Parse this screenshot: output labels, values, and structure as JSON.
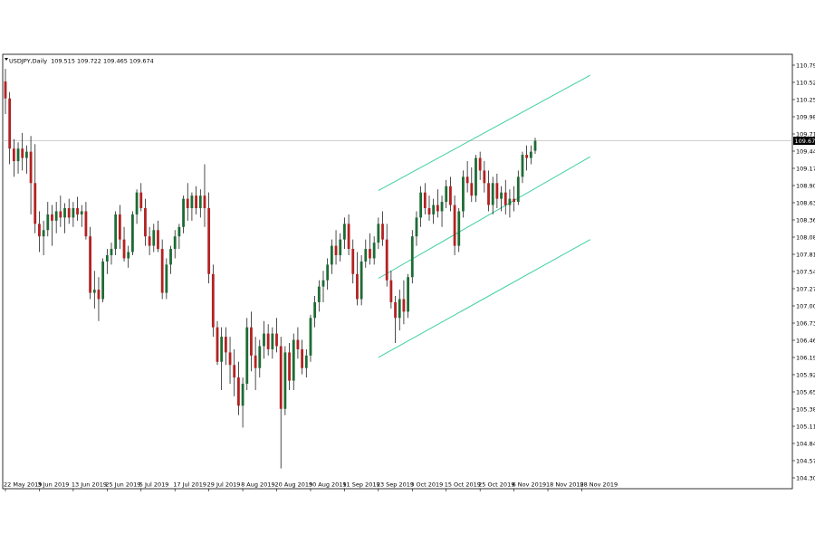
{
  "chart_data": {
    "type": "candlestick",
    "title": "USDJPY,Daily",
    "ohlc_text": "109.515 109.722 109.465 109.674",
    "last_price_label": "109.674",
    "last_price": 109.674,
    "ylim": [
      104.3,
      110.88
    ],
    "y_ticks": [
      "110.795",
      "110.525",
      "110.255",
      "109.980",
      "109.710",
      "109.440",
      "109.170",
      "108.900",
      "108.630",
      "108.360",
      "108.085",
      "107.815",
      "107.545",
      "107.275",
      "107.005",
      "106.735",
      "106.465",
      "106.190",
      "105.920",
      "105.650",
      "105.380",
      "105.110",
      "104.840",
      "104.570",
      "104.300"
    ],
    "x_labels": [
      "22 May 2019",
      "3 Jun 2019",
      "13 Jun 2019",
      "25 Jun 2019",
      "5 Jul 2019",
      "17 Jul 2019",
      "29 Jul 2019",
      "8 Aug 2019",
      "20 Aug 2019",
      "30 Aug 2019",
      "11 Sep 2019",
      "23 Sep 2019",
      "3 Oct 2019",
      "15 Oct 2019",
      "25 Oct 2019",
      "6 Nov 2019",
      "18 Nov 2019",
      "28 Nov 2019"
    ],
    "x_label_bars": [
      0,
      8,
      16,
      24,
      32,
      40,
      48,
      56,
      64,
      72,
      80,
      88,
      96,
      104,
      112,
      120,
      128,
      136
    ],
    "grid": false,
    "colors": {
      "up": "#1e6b35",
      "down": "#b22222",
      "wick": "#000000",
      "channel": "#3ecfa3",
      "price_line": "#c8c8c8",
      "background": "#ffffff"
    },
    "channel": {
      "upper": {
        "start_bar": 88,
        "start": 108.88,
        "end_bar": 138,
        "end": 110.72
      },
      "middle": {
        "start_bar": 88,
        "start": 107.48,
        "end_bar": 138,
        "end": 109.42
      },
      "lower": {
        "start_bar": 88,
        "start": 106.22,
        "end_bar": 138,
        "end": 108.1
      }
    },
    "candles": [
      {
        "o": 110.62,
        "h": 110.82,
        "l": 110.1,
        "c": 110.35
      },
      {
        "o": 110.35,
        "h": 110.45,
        "l": 109.3,
        "c": 109.55
      },
      {
        "o": 109.55,
        "h": 109.7,
        "l": 109.1,
        "c": 109.35
      },
      {
        "o": 109.35,
        "h": 109.65,
        "l": 109.15,
        "c": 109.55
      },
      {
        "o": 109.55,
        "h": 109.8,
        "l": 109.2,
        "c": 109.4
      },
      {
        "o": 109.4,
        "h": 109.6,
        "l": 109.15,
        "c": 109.5
      },
      {
        "o": 109.5,
        "h": 109.75,
        "l": 108.5,
        "c": 109.0
      },
      {
        "o": 109.0,
        "h": 109.62,
        "l": 108.2,
        "c": 108.35
      },
      {
        "o": 108.35,
        "h": 108.55,
        "l": 107.9,
        "c": 108.15
      },
      {
        "o": 108.15,
        "h": 108.4,
        "l": 107.85,
        "c": 108.25
      },
      {
        "o": 108.25,
        "h": 108.7,
        "l": 108.15,
        "c": 108.5
      },
      {
        "o": 108.5,
        "h": 108.65,
        "l": 108.0,
        "c": 108.4
      },
      {
        "o": 108.4,
        "h": 108.7,
        "l": 108.2,
        "c": 108.55
      },
      {
        "o": 108.55,
        "h": 108.8,
        "l": 108.3,
        "c": 108.45
      },
      {
        "o": 108.45,
        "h": 108.68,
        "l": 108.2,
        "c": 108.6
      },
      {
        "o": 108.6,
        "h": 108.75,
        "l": 108.35,
        "c": 108.45
      },
      {
        "o": 108.45,
        "h": 108.7,
        "l": 108.3,
        "c": 108.6
      },
      {
        "o": 108.6,
        "h": 108.78,
        "l": 108.4,
        "c": 108.5
      },
      {
        "o": 108.5,
        "h": 108.65,
        "l": 108.3,
        "c": 108.55
      },
      {
        "o": 108.55,
        "h": 108.7,
        "l": 108.1,
        "c": 108.15
      },
      {
        "o": 108.15,
        "h": 108.3,
        "l": 107.15,
        "c": 107.25
      },
      {
        "o": 107.25,
        "h": 107.6,
        "l": 107.0,
        "c": 107.3
      },
      {
        "o": 107.3,
        "h": 107.5,
        "l": 106.8,
        "c": 107.15
      },
      {
        "o": 107.15,
        "h": 107.8,
        "l": 107.1,
        "c": 107.75
      },
      {
        "o": 107.75,
        "h": 107.95,
        "l": 107.55,
        "c": 107.85
      },
      {
        "o": 107.85,
        "h": 108.05,
        "l": 107.7,
        "c": 107.95
      },
      {
        "o": 107.95,
        "h": 108.55,
        "l": 107.85,
        "c": 108.5
      },
      {
        "o": 108.5,
        "h": 108.65,
        "l": 107.95,
        "c": 108.1
      },
      {
        "o": 108.1,
        "h": 108.3,
        "l": 107.75,
        "c": 107.8
      },
      {
        "o": 107.8,
        "h": 108.0,
        "l": 107.65,
        "c": 107.9
      },
      {
        "o": 107.9,
        "h": 108.55,
        "l": 107.85,
        "c": 108.5
      },
      {
        "o": 108.5,
        "h": 108.9,
        "l": 108.35,
        "c": 108.85
      },
      {
        "o": 108.85,
        "h": 109.0,
        "l": 108.55,
        "c": 108.6
      },
      {
        "o": 108.6,
        "h": 108.75,
        "l": 108.0,
        "c": 108.15
      },
      {
        "o": 108.15,
        "h": 108.3,
        "l": 107.85,
        "c": 108.0
      },
      {
        "o": 108.0,
        "h": 108.35,
        "l": 107.9,
        "c": 108.25
      },
      {
        "o": 108.25,
        "h": 108.4,
        "l": 107.9,
        "c": 107.95
      },
      {
        "o": 107.95,
        "h": 108.1,
        "l": 107.15,
        "c": 107.25
      },
      {
        "o": 107.25,
        "h": 107.8,
        "l": 107.15,
        "c": 107.7
      },
      {
        "o": 107.7,
        "h": 108.0,
        "l": 107.55,
        "c": 107.95
      },
      {
        "o": 107.95,
        "h": 108.25,
        "l": 107.8,
        "c": 108.15
      },
      {
        "o": 108.15,
        "h": 108.35,
        "l": 107.95,
        "c": 108.3
      },
      {
        "o": 108.3,
        "h": 108.8,
        "l": 108.2,
        "c": 108.75
      },
      {
        "o": 108.75,
        "h": 109.0,
        "l": 108.4,
        "c": 108.6
      },
      {
        "o": 108.6,
        "h": 108.85,
        "l": 108.4,
        "c": 108.8
      },
      {
        "o": 108.8,
        "h": 108.95,
        "l": 108.5,
        "c": 108.6
      },
      {
        "o": 108.6,
        "h": 108.9,
        "l": 108.45,
        "c": 108.8
      },
      {
        "o": 108.8,
        "h": 109.3,
        "l": 108.3,
        "c": 108.6
      },
      {
        "o": 108.6,
        "h": 108.85,
        "l": 107.4,
        "c": 107.55
      },
      {
        "o": 107.55,
        "h": 107.7,
        "l": 106.55,
        "c": 106.7
      },
      {
        "o": 106.7,
        "h": 106.8,
        "l": 106.1,
        "c": 106.15
      },
      {
        "o": 106.15,
        "h": 106.7,
        "l": 105.7,
        "c": 106.55
      },
      {
        "o": 106.55,
        "h": 106.7,
        "l": 106.1,
        "c": 106.3
      },
      {
        "o": 106.3,
        "h": 106.55,
        "l": 105.8,
        "c": 106.1
      },
      {
        "o": 106.1,
        "h": 106.35,
        "l": 105.6,
        "c": 105.9
      },
      {
        "o": 105.9,
        "h": 106.15,
        "l": 105.3,
        "c": 105.45
      },
      {
        "o": 105.45,
        "h": 105.9,
        "l": 105.1,
        "c": 105.8
      },
      {
        "o": 105.8,
        "h": 106.85,
        "l": 105.7,
        "c": 106.7
      },
      {
        "o": 106.7,
        "h": 106.95,
        "l": 106.0,
        "c": 106.25
      },
      {
        "o": 106.25,
        "h": 106.55,
        "l": 105.7,
        "c": 106.05
      },
      {
        "o": 106.05,
        "h": 106.5,
        "l": 105.9,
        "c": 106.4
      },
      {
        "o": 106.4,
        "h": 106.8,
        "l": 106.2,
        "c": 106.6
      },
      {
        "o": 106.6,
        "h": 106.75,
        "l": 106.25,
        "c": 106.35
      },
      {
        "o": 106.35,
        "h": 106.7,
        "l": 106.2,
        "c": 106.6
      },
      {
        "o": 106.6,
        "h": 106.85,
        "l": 106.3,
        "c": 106.4
      },
      {
        "o": 106.4,
        "h": 106.55,
        "l": 104.45,
        "c": 105.4
      },
      {
        "o": 105.4,
        "h": 106.4,
        "l": 105.3,
        "c": 106.3
      },
      {
        "o": 106.3,
        "h": 106.45,
        "l": 105.7,
        "c": 105.85
      },
      {
        "o": 105.85,
        "h": 106.6,
        "l": 105.7,
        "c": 106.5
      },
      {
        "o": 106.5,
        "h": 106.7,
        "l": 106.2,
        "c": 106.35
      },
      {
        "o": 106.35,
        "h": 106.5,
        "l": 105.95,
        "c": 106.05
      },
      {
        "o": 106.05,
        "h": 106.35,
        "l": 105.9,
        "c": 106.25
      },
      {
        "o": 106.25,
        "h": 106.9,
        "l": 106.15,
        "c": 106.85
      },
      {
        "o": 106.85,
        "h": 107.2,
        "l": 106.7,
        "c": 107.1
      },
      {
        "o": 107.1,
        "h": 107.45,
        "l": 106.95,
        "c": 107.35
      },
      {
        "o": 107.35,
        "h": 107.6,
        "l": 107.1,
        "c": 107.45
      },
      {
        "o": 107.45,
        "h": 107.8,
        "l": 107.3,
        "c": 107.7
      },
      {
        "o": 107.7,
        "h": 108.1,
        "l": 107.55,
        "c": 108.0
      },
      {
        "o": 108.0,
        "h": 108.25,
        "l": 107.7,
        "c": 107.85
      },
      {
        "o": 107.85,
        "h": 108.2,
        "l": 107.75,
        "c": 108.1
      },
      {
        "o": 108.1,
        "h": 108.45,
        "l": 107.95,
        "c": 108.35
      },
      {
        "o": 108.35,
        "h": 108.5,
        "l": 107.85,
        "c": 107.95
      },
      {
        "o": 107.95,
        "h": 108.1,
        "l": 107.4,
        "c": 107.55
      },
      {
        "o": 107.55,
        "h": 107.9,
        "l": 107.05,
        "c": 107.15
      },
      {
        "o": 107.15,
        "h": 107.85,
        "l": 107.05,
        "c": 107.75
      },
      {
        "o": 107.75,
        "h": 108.1,
        "l": 107.65,
        "c": 107.95
      },
      {
        "o": 107.95,
        "h": 108.2,
        "l": 107.7,
        "c": 107.8
      },
      {
        "o": 107.8,
        "h": 108.15,
        "l": 107.7,
        "c": 108.05
      },
      {
        "o": 108.05,
        "h": 108.45,
        "l": 107.95,
        "c": 108.35
      },
      {
        "o": 108.35,
        "h": 108.55,
        "l": 108.0,
        "c": 108.1
      },
      {
        "o": 108.1,
        "h": 108.35,
        "l": 107.35,
        "c": 107.45
      },
      {
        "o": 107.45,
        "h": 107.6,
        "l": 107.0,
        "c": 107.1
      },
      {
        "o": 107.1,
        "h": 107.2,
        "l": 106.45,
        "c": 106.85
      },
      {
        "o": 106.85,
        "h": 107.3,
        "l": 106.65,
        "c": 107.15
      },
      {
        "o": 107.15,
        "h": 107.45,
        "l": 106.75,
        "c": 106.95
      },
      {
        "o": 106.95,
        "h": 107.55,
        "l": 106.85,
        "c": 107.5
      },
      {
        "o": 107.5,
        "h": 108.25,
        "l": 107.4,
        "c": 108.15
      },
      {
        "o": 108.15,
        "h": 108.55,
        "l": 108.0,
        "c": 108.45
      },
      {
        "o": 108.45,
        "h": 108.95,
        "l": 108.3,
        "c": 108.85
      },
      {
        "o": 108.85,
        "h": 109.0,
        "l": 108.5,
        "c": 108.6
      },
      {
        "o": 108.6,
        "h": 108.8,
        "l": 108.4,
        "c": 108.5
      },
      {
        "o": 108.5,
        "h": 108.75,
        "l": 108.35,
        "c": 108.65
      },
      {
        "o": 108.65,
        "h": 108.9,
        "l": 108.45,
        "c": 108.55
      },
      {
        "o": 108.55,
        "h": 108.8,
        "l": 108.3,
        "c": 108.7
      },
      {
        "o": 108.7,
        "h": 109.05,
        "l": 108.6,
        "c": 108.95
      },
      {
        "o": 108.95,
        "h": 109.1,
        "l": 108.55,
        "c": 108.65
      },
      {
        "o": 108.65,
        "h": 108.8,
        "l": 107.85,
        "c": 108.0
      },
      {
        "o": 108.0,
        "h": 108.6,
        "l": 107.9,
        "c": 108.55
      },
      {
        "o": 108.55,
        "h": 109.2,
        "l": 108.45,
        "c": 109.1
      },
      {
        "o": 109.1,
        "h": 109.35,
        "l": 108.85,
        "c": 109.0
      },
      {
        "o": 109.0,
        "h": 109.25,
        "l": 108.7,
        "c": 108.8
      },
      {
        "o": 108.8,
        "h": 109.45,
        "l": 108.7,
        "c": 109.4
      },
      {
        "o": 109.4,
        "h": 109.5,
        "l": 109.05,
        "c": 109.2
      },
      {
        "o": 109.2,
        "h": 109.35,
        "l": 108.85,
        "c": 109.0
      },
      {
        "o": 109.0,
        "h": 109.2,
        "l": 108.55,
        "c": 108.65
      },
      {
        "o": 108.65,
        "h": 109.1,
        "l": 108.5,
        "c": 109.0
      },
      {
        "o": 109.0,
        "h": 109.15,
        "l": 108.6,
        "c": 108.75
      },
      {
        "o": 108.75,
        "h": 108.95,
        "l": 108.55,
        "c": 108.85
      },
      {
        "o": 108.85,
        "h": 109.05,
        "l": 108.5,
        "c": 108.65
      },
      {
        "o": 108.65,
        "h": 108.9,
        "l": 108.45,
        "c": 108.75
      },
      {
        "o": 108.75,
        "h": 108.95,
        "l": 108.55,
        "c": 108.7
      },
      {
        "o": 108.7,
        "h": 109.2,
        "l": 108.65,
        "c": 109.1
      },
      {
        "o": 109.1,
        "h": 109.5,
        "l": 109.0,
        "c": 109.45
      },
      {
        "o": 109.45,
        "h": 109.6,
        "l": 109.2,
        "c": 109.4
      },
      {
        "o": 109.4,
        "h": 109.6,
        "l": 109.3,
        "c": 109.5
      },
      {
        "o": 109.515,
        "h": 109.722,
        "l": 109.465,
        "c": 109.674
      }
    ]
  }
}
